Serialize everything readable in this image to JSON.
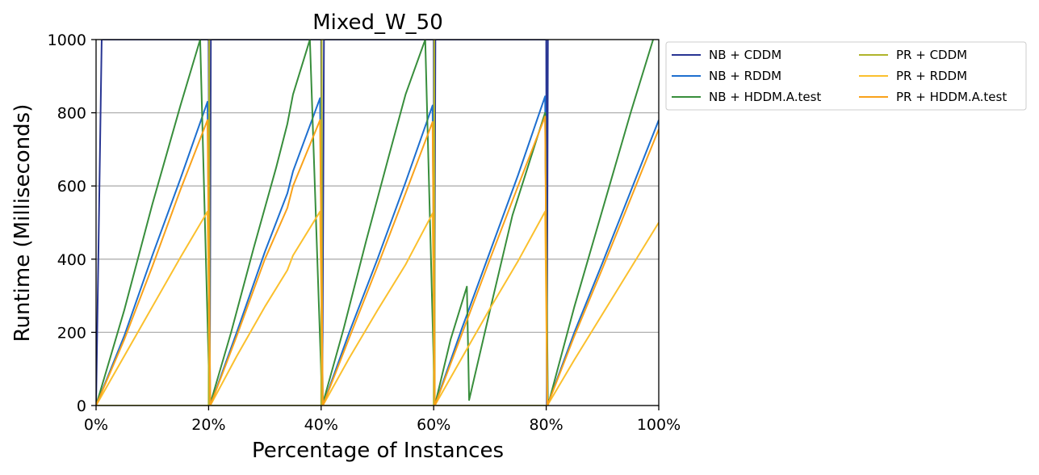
{
  "chart_data": {
    "type": "line",
    "title": "Mixed_W_50",
    "xlabel": "Percentage of Instances",
    "ylabel": "Runtime (Milliseconds)",
    "xlim": [
      0,
      100
    ],
    "ylim": [
      0,
      1000
    ],
    "x_ticks": [
      0,
      20,
      40,
      60,
      80,
      100
    ],
    "x_tick_labels": [
      "0%",
      "20%",
      "40%",
      "60%",
      "80%",
      "100%"
    ],
    "y_ticks": [
      0,
      200,
      400,
      600,
      800,
      1000
    ],
    "y_tick_labels": [
      "0",
      "200",
      "400",
      "600",
      "800",
      "1000"
    ],
    "grid": "horizontal",
    "legend": {
      "placement": "outside-right",
      "columns": 2
    },
    "series": [
      {
        "name": "NB + CDDM",
        "color": "#283593",
        "points": [
          [
            0,
            0
          ],
          [
            1,
            1000
          ],
          [
            20,
            1000
          ],
          [
            20.2,
            0
          ],
          [
            20.4,
            1000
          ],
          [
            40,
            1000
          ],
          [
            40.2,
            0
          ],
          [
            40.5,
            1000
          ],
          [
            60,
            1000
          ],
          [
            60.1,
            0
          ],
          [
            60.3,
            1000
          ],
          [
            80,
            1000
          ],
          [
            80.1,
            0
          ],
          [
            80.3,
            1000
          ]
        ]
      },
      {
        "name": "NB + RDDM",
        "color": "#1E6FCF",
        "points": [
          [
            0,
            0
          ],
          [
            5,
            190
          ],
          [
            10,
            410
          ],
          [
            15,
            620
          ],
          [
            19.8,
            830
          ],
          [
            20.3,
            0
          ],
          [
            25,
            200
          ],
          [
            30,
            420
          ],
          [
            34,
            580
          ],
          [
            35,
            640
          ],
          [
            39.8,
            840
          ],
          [
            40.3,
            0
          ],
          [
            45,
            200
          ],
          [
            50,
            400
          ],
          [
            55,
            610
          ],
          [
            59.8,
            820
          ],
          [
            60.2,
            0
          ],
          [
            65,
            210
          ],
          [
            70,
            420
          ],
          [
            75,
            630
          ],
          [
            79.8,
            845
          ],
          [
            80.2,
            0
          ],
          [
            85,
            200
          ],
          [
            90,
            390
          ],
          [
            95,
            585
          ],
          [
            100,
            780
          ]
        ]
      },
      {
        "name": "NB + HDDM.A.test",
        "color": "#388E3C",
        "points": [
          [
            0,
            0
          ],
          [
            5,
            260
          ],
          [
            10,
            550
          ],
          [
            15,
            820
          ],
          [
            18.5,
            1000
          ],
          [
            20.2,
            0
          ],
          [
            24,
            200
          ],
          [
            28,
            430
          ],
          [
            32,
            650
          ],
          [
            34,
            770
          ],
          [
            35,
            850
          ],
          [
            38,
            1000
          ],
          [
            40.2,
            0
          ],
          [
            44,
            210
          ],
          [
            48,
            450
          ],
          [
            52,
            680
          ],
          [
            55,
            850
          ],
          [
            58.5,
            1000
          ],
          [
            60.2,
            0
          ],
          [
            63,
            180
          ],
          [
            65.9,
            325
          ],
          [
            66.3,
            15
          ],
          [
            70,
            260
          ],
          [
            74,
            520
          ],
          [
            79.8,
            800
          ],
          [
            80.3,
            0
          ],
          [
            85,
            270
          ],
          [
            90,
            535
          ],
          [
            95,
            800
          ],
          [
            99,
            1000
          ]
        ]
      },
      {
        "name": "PR + CDDM",
        "color": "#AFB42B",
        "points": [
          [
            0,
            0
          ],
          [
            20,
            0
          ],
          [
            20.1,
            1000
          ],
          [
            20.2,
            0
          ],
          [
            40,
            0
          ],
          [
            40.1,
            1000
          ],
          [
            40.2,
            0
          ],
          [
            60,
            0
          ],
          [
            60.1,
            1000
          ],
          [
            60.2,
            0
          ],
          [
            80,
            0
          ],
          [
            80.1,
            0
          ]
        ]
      },
      {
        "name": "PR + RDDM",
        "color": "#FBC02D",
        "points": [
          [
            0,
            0
          ],
          [
            5,
            135
          ],
          [
            10,
            270
          ],
          [
            15,
            405
          ],
          [
            19.8,
            530
          ],
          [
            20.3,
            0
          ],
          [
            25,
            135
          ],
          [
            30,
            270
          ],
          [
            34,
            370
          ],
          [
            35,
            410
          ],
          [
            39.8,
            530
          ],
          [
            40.3,
            0
          ],
          [
            45,
            130
          ],
          [
            50,
            260
          ],
          [
            55,
            385
          ],
          [
            59.8,
            525
          ],
          [
            60.2,
            0
          ],
          [
            65,
            130
          ],
          [
            70,
            265
          ],
          [
            75,
            395
          ],
          [
            79.8,
            530
          ],
          [
            80.2,
            0
          ],
          [
            85,
            125
          ],
          [
            90,
            250
          ],
          [
            95,
            375
          ],
          [
            100,
            500
          ]
        ]
      },
      {
        "name": "PR + HDDM.A.test",
        "color": "#F9A21A",
        "points": [
          [
            0,
            0
          ],
          [
            5,
            180
          ],
          [
            10,
            380
          ],
          [
            15,
            590
          ],
          [
            19.8,
            780
          ],
          [
            20.3,
            0
          ],
          [
            25,
            190
          ],
          [
            30,
            400
          ],
          [
            34,
            540
          ],
          [
            35,
            600
          ],
          [
            39.8,
            780
          ],
          [
            40.3,
            0
          ],
          [
            45,
            185
          ],
          [
            50,
            380
          ],
          [
            55,
            580
          ],
          [
            59.8,
            775
          ],
          [
            60.2,
            0
          ],
          [
            65,
            195
          ],
          [
            70,
            400
          ],
          [
            75,
            600
          ],
          [
            79.8,
            790
          ],
          [
            80.2,
            0
          ],
          [
            85,
            190
          ],
          [
            90,
            375
          ],
          [
            95,
            565
          ],
          [
            100,
            755
          ]
        ]
      }
    ]
  }
}
